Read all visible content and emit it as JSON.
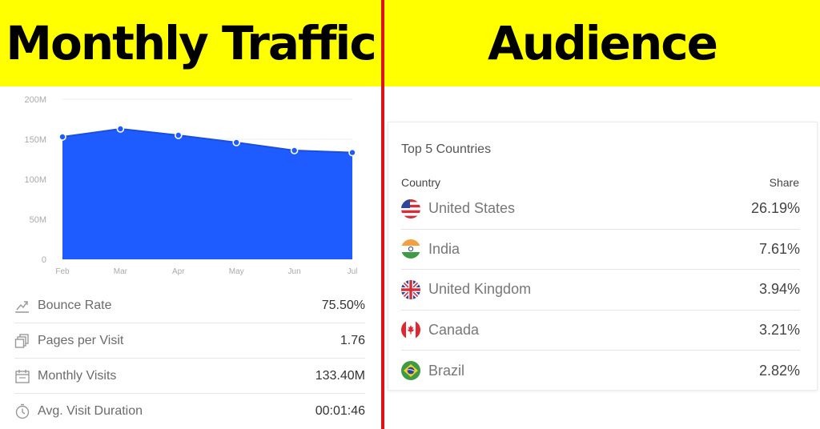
{
  "headers": {
    "left_title": "Monthly Traffic",
    "right_title": "Audience"
  },
  "colors": {
    "banner": "#ffff00",
    "divider": "#e0111b",
    "area_fill": "#1f5cff"
  },
  "chart_data": {
    "type": "area",
    "categories": [
      "Feb",
      "Mar",
      "Apr",
      "May",
      "Jun",
      "Jul"
    ],
    "values": [
      153,
      163,
      155,
      146,
      136,
      133.4
    ],
    "y_ticks": [
      "0",
      "50M",
      "100M",
      "150M",
      "200M"
    ],
    "ylim": [
      0,
      200
    ],
    "unit": "M",
    "grid": true,
    "title": "",
    "xlabel": "",
    "ylabel": ""
  },
  "metrics": [
    {
      "icon": "bounce-rate-icon",
      "label": "Bounce Rate",
      "value": "75.50%"
    },
    {
      "icon": "pages-per-visit-icon",
      "label": "Pages per Visit",
      "value": "1.76"
    },
    {
      "icon": "calendar-icon",
      "label": "Monthly Visits",
      "value": "133.40M"
    },
    {
      "icon": "clock-icon",
      "label": "Avg. Visit Duration",
      "value": "00:01:46"
    }
  ],
  "audience": {
    "title": "Top 5 Countries",
    "col_country": "Country",
    "col_share": "Share",
    "countries": [
      {
        "flag": "us-flag-icon",
        "name": "United States",
        "share": "26.19%"
      },
      {
        "flag": "india-flag-icon",
        "name": "India",
        "share": "7.61%"
      },
      {
        "flag": "uk-flag-icon",
        "name": "United Kingdom",
        "share": "3.94%"
      },
      {
        "flag": "canada-flag-icon",
        "name": "Canada",
        "share": "3.21%"
      },
      {
        "flag": "brazil-flag-icon",
        "name": "Brazil",
        "share": "2.82%"
      }
    ]
  }
}
